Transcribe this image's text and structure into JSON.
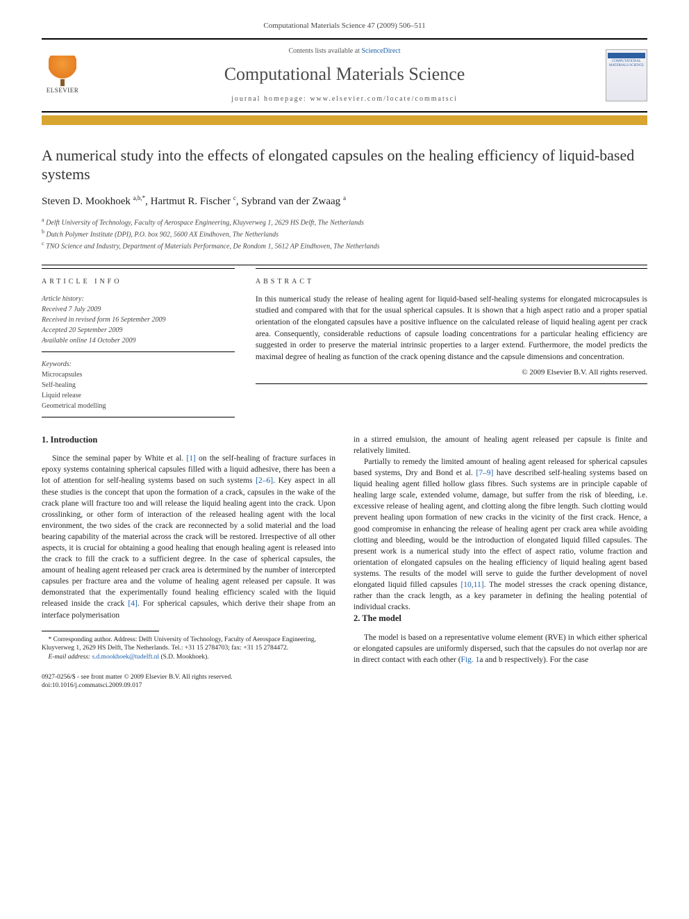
{
  "running_head": "Computational Materials Science 47 (2009) 506–511",
  "header": {
    "publisher": "ELSEVIER",
    "avail_prefix": "Contents lists available at ",
    "avail_link": "ScienceDirect",
    "journal": "Computational Materials Science",
    "homepage_label": "journal homepage: www.elsevier.com/locate/commatsci",
    "cover_text": "COMPUTATIONAL MATERIALS SCIENCE"
  },
  "title": "A numerical study into the effects of elongated capsules on the healing efficiency of liquid-based systems",
  "authors_html": "Steven D. Mookhoek <sup>a,b,*</sup>, Hartmut R. Fischer <sup>c</sup>, Sybrand van der Zwaag <sup>a</sup>",
  "affiliations": {
    "a": "Delft University of Technology, Faculty of Aerospace Engineering, Kluyverweg 1, 2629 HS Delft, The Netherlands",
    "b": "Dutch Polymer Institute (DPI), P.O. box 902, 5600 AX Eindhoven, The Netherlands",
    "c": "TNO Science and Industry, Department of Materials Performance, De Rondom 1, 5612 AP Eindhoven, The Netherlands"
  },
  "info": {
    "head": "ARTICLE INFO",
    "history_label": "Article history:",
    "received": "Received 7 July 2009",
    "revised": "Received in revised form 16 September 2009",
    "accepted": "Accepted 20 September 2009",
    "online": "Available online 14 October 2009",
    "keywords_label": "Keywords:",
    "keywords": [
      "Microcapsules",
      "Self-healing",
      "Liquid release",
      "Geometrical modelling"
    ]
  },
  "abstract": {
    "head": "ABSTRACT",
    "text": "In this numerical study the release of healing agent for liquid-based self-healing systems for elongated microcapsules is studied and compared with that for the usual spherical capsules. It is shown that a high aspect ratio and a proper spatial orientation of the elongated capsules have a positive influence on the calculated release of liquid healing agent per crack area. Consequently, considerable reductions of capsule loading concentrations for a particular healing efficiency are suggested in order to preserve the material intrinsic properties to a larger extend. Furthermore, the model predicts the maximal degree of healing as function of the crack opening distance and the capsule dimensions and concentration.",
    "copyright": "© 2009 Elsevier B.V. All rights reserved."
  },
  "sections": {
    "s1": {
      "head": "1. Introduction",
      "p1": "Since the seminal paper by White et al. [1] on the self-healing of fracture surfaces in epoxy systems containing spherical capsules filled with a liquid adhesive, there has been a lot of attention for self-healing systems based on such systems [2–6]. Key aspect in all these studies is the concept that upon the formation of a crack, capsules in the wake of the crack plane will fracture too and will release the liquid healing agent into the crack. Upon crosslinking, or other form of interaction of the released healing agent with the local environment, the two sides of the crack are reconnected by a solid material and the load bearing capability of the material across the crack will be restored. Irrespective of all other aspects, it is crucial for obtaining a good healing that enough healing agent is released into the crack to fill the crack to a sufficient degree. In the case of spherical capsules, the amount of healing agent released per crack area is determined by the number of intercepted capsules per fracture area and the volume of healing agent released per capsule. It was demonstrated that the experimentally found healing efficiency scaled with the liquid released inside the crack [4]. For spherical capsules, which derive their shape from an interface polymerisation",
      "p2": "in a stirred emulsion, the amount of healing agent released per capsule is finite and relatively limited.",
      "p3": "Partially to remedy the limited amount of healing agent released for spherical capsules based systems, Dry and Bond et al. [7–9] have described self-healing systems based on liquid healing agent filled hollow glass fibres. Such systems are in principle capable of healing large scale, extended volume, damage, but suffer from the risk of bleeding, i.e. excessive release of healing agent, and clotting along the fibre length. Such clotting would prevent healing upon formation of new cracks in the vicinity of the first crack. Hence, a good compromise in enhancing the release of healing agent per crack area while avoiding clotting and bleeding, would be the introduction of elongated liquid filled capsules. The present work is a numerical study into the effect of aspect ratio, volume fraction and orientation of elongated capsules on the healing efficiency of liquid healing agent based systems. The results of the model will serve to guide the further development of novel elongated liquid filled capsules [10,11]. The model stresses the crack opening distance, rather than the crack length, as a key parameter in defining the healing potential of individual cracks."
    },
    "s2": {
      "head": "2. The model",
      "p1": "The model is based on a representative volume element (RVE) in which either spherical or elongated capsules are uniformly dispersed, such that the capsules do not overlap nor are in direct contact with each other (Fig. 1a and b respectively). For the case"
    }
  },
  "footnote": {
    "corr": "* Corresponding author. Address: Delft University of Technology, Faculty of Aerospace Engineering, Kluyverweg 1, 2629 HS Delft, The Netherlands. Tel.: +31 15 2784703; fax: +31 15 2784472.",
    "email_label": "E-mail address:",
    "email": "s.d.mookhoek@tudelft.nl",
    "email_who": "(S.D. Mookhoek)."
  },
  "doi": {
    "line1": "0927-0256/$ - see front matter © 2009 Elsevier B.V. All rights reserved.",
    "line2": "doi:10.1016/j.commatsci.2009.09.017"
  },
  "colors": {
    "gold": "#d8a530",
    "link": "#1a5eab",
    "elsevier_orange": "#e67e22"
  }
}
